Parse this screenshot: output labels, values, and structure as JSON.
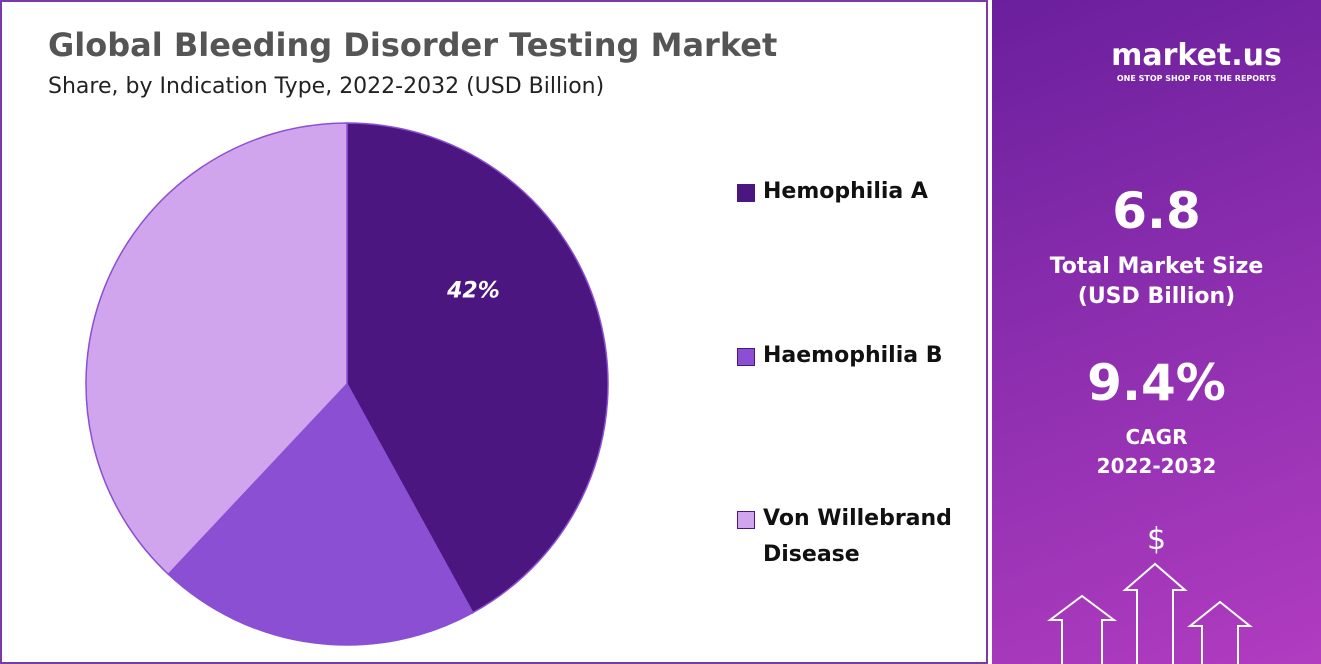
{
  "chart_data": {
    "type": "pie",
    "title": "Global Bleeding Disorder Testing Market",
    "subtitle": "Share, by Indication Type, 2022-2032 (USD Billion)",
    "categories": [
      "Hemophilia A",
      "Haemophilia B",
      "Von Willebrand Disease"
    ],
    "values": [
      42,
      20,
      38
    ],
    "value_labels": [
      "42%",
      null,
      null
    ],
    "colors": [
      "#4b1680",
      "#8a4fd2",
      "#d1a5ee"
    ],
    "legend": "right"
  },
  "panel": {
    "logo": "market.us",
    "tagline": "ONE STOP SHOP FOR THE REPORTS",
    "market_size": "6.8",
    "market_size_label": "Total Market Size",
    "market_size_unit": "(USD Billion)",
    "cagr": "9.4%",
    "cagr_label": "CAGR",
    "cagr_period": "2022-2032",
    "currency_icon": "$"
  }
}
